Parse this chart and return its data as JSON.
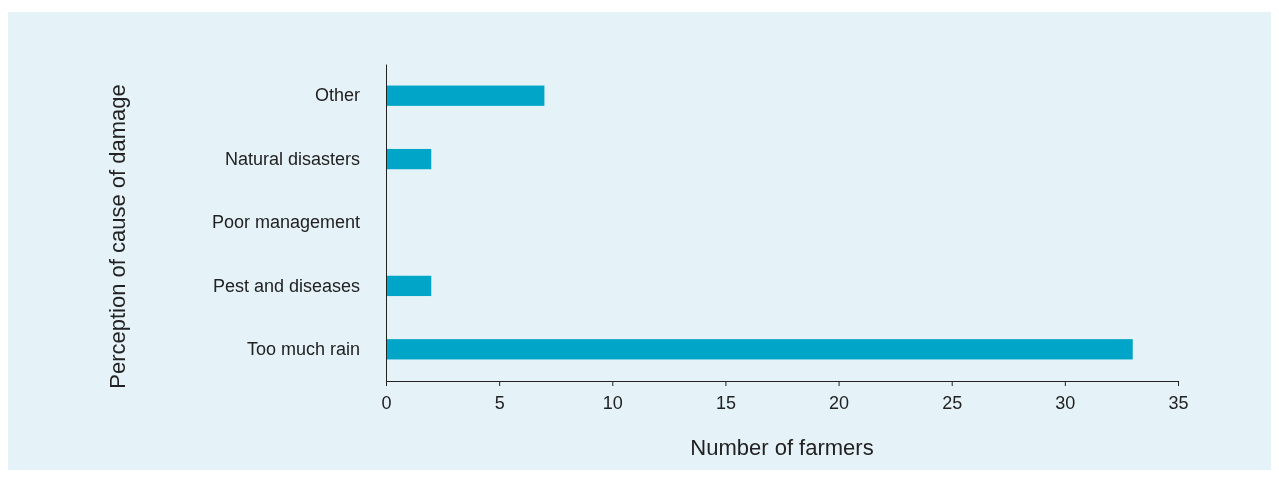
{
  "chart_data": {
    "type": "bar",
    "orientation": "horizontal",
    "categories": [
      "Other",
      "Natural disasters",
      "Poor management",
      "Pest and diseases",
      "Too much rain"
    ],
    "values": [
      7,
      2,
      0,
      2,
      33
    ],
    "color": "#00a5c8",
    "xlabel": "Number of farmers",
    "ylabel": "Perception of cause of damage",
    "xlim": [
      0,
      35
    ],
    "xticks": [
      0,
      5,
      10,
      15,
      20,
      25,
      30,
      35
    ],
    "grid": false
  }
}
